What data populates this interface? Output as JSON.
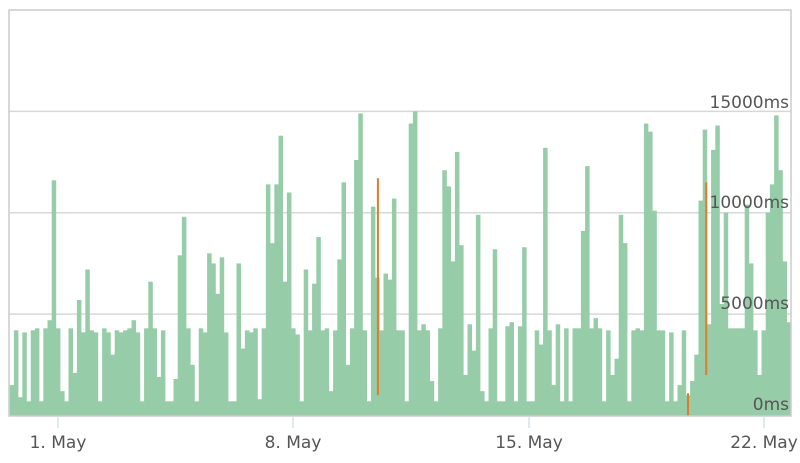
{
  "chart_data": {
    "type": "bar",
    "x_axis": {
      "type": "datetime",
      "start": "29 Apr 15:00",
      "interval": "3h",
      "end": "22 May 18:00",
      "ticks": [
        {
          "label": "1. May",
          "date": "1 May"
        },
        {
          "label": "8. May",
          "date": "8 May"
        },
        {
          "label": "15. May",
          "date": "15 May"
        },
        {
          "label": "22. May",
          "date": "22 May"
        }
      ]
    },
    "y_axis": {
      "unit": "ms",
      "ylim": [
        0,
        20000
      ],
      "ticks": [
        {
          "value": 0,
          "label": "0ms"
        },
        {
          "value": 5000,
          "label": "5000ms"
        },
        {
          "value": 10000,
          "label": "10000ms"
        },
        {
          "value": 15000,
          "label": "15000ms"
        }
      ],
      "grid": true
    },
    "colors": {
      "bars": "#97cca8",
      "ranges": "#e07b2a",
      "grid": "#d8d8d8",
      "frame": "#cccccc",
      "tick": "#c0d0e0"
    },
    "series": [
      {
        "type": "bar",
        "values": [
          1500,
          4200,
          900,
          4100,
          700,
          4200,
          4300,
          700,
          4300,
          4700,
          11600,
          4300,
          1200,
          700,
          4300,
          2100,
          5700,
          4100,
          7200,
          4200,
          4100,
          700,
          4300,
          4100,
          3000,
          4200,
          4100,
          4200,
          4300,
          4700,
          4100,
          700,
          4300,
          6600,
          4300,
          1900,
          4200,
          700,
          700,
          1800,
          7900,
          9800,
          4300,
          2500,
          700,
          4300,
          4100,
          8000,
          7500,
          6000,
          7800,
          4100,
          700,
          700,
          7500,
          3300,
          4200,
          4100,
          4300,
          800,
          4300,
          11400,
          8500,
          11400,
          13800,
          6600,
          11000,
          4300,
          4000,
          700,
          7200,
          4200,
          6500,
          8800,
          4200,
          4300,
          1200,
          4200,
          7700,
          11500,
          2500,
          4300,
          12600,
          14900,
          4200,
          700,
          10300,
          6800,
          4200,
          7000,
          6700,
          10700,
          4200,
          4200,
          700,
          14400,
          15000,
          4200,
          4500,
          4200,
          1700,
          700,
          4300,
          12100,
          11300,
          7600,
          13000,
          8400,
          2000,
          4500,
          3200,
          9900,
          1200,
          700,
          4300,
          8200,
          700,
          700,
          4400,
          4600,
          700,
          4400,
          8300,
          700,
          700,
          4200,
          3500,
          13200,
          4200,
          1500,
          4500,
          700,
          4300,
          700,
          4300,
          4300,
          9100,
          12300,
          4300,
          4800,
          4300,
          700,
          4200,
          2000,
          2800,
          9900,
          8500,
          700,
          4200,
          4300,
          4200,
          14400,
          14000,
          10100,
          4200,
          4200,
          700,
          4100,
          700,
          1500,
          4200,
          1000,
          1700,
          3000,
          10600,
          14100,
          4500,
          13100,
          14300,
          5500,
          10000,
          4300,
          4300,
          4300,
          4300,
          10400,
          7500,
          4200,
          2000,
          4200,
          10000,
          11400,
          14800,
          12100,
          7600,
          4600
        ]
      },
      {
        "type": "range",
        "points": [
          {
            "date": "10 May 12:30",
            "low": 1000,
            "high": 11700
          },
          {
            "date": "19 May 18:00",
            "low": 0,
            "high": 1100
          },
          {
            "date": "20 May 07:00",
            "low": 2000,
            "high": 11500
          }
        ]
      }
    ]
  }
}
